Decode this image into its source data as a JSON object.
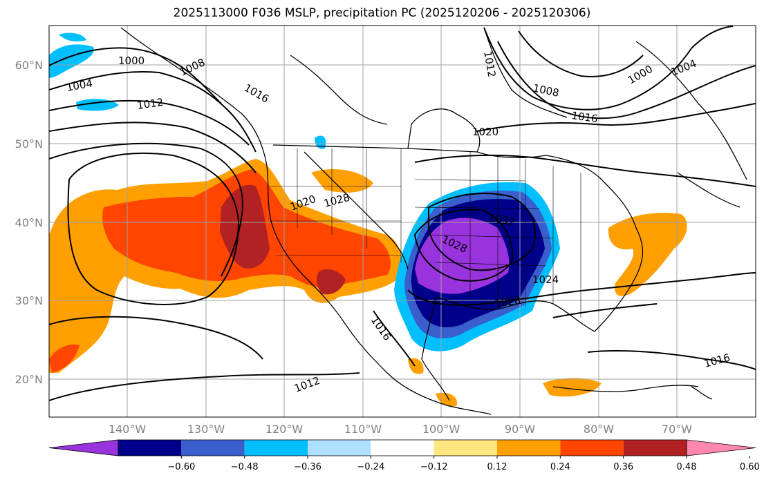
{
  "title": "2025113000 F036 MSLP, precipitation PC (2025120206 - 2025120306)",
  "map": {
    "lat_labels": [
      "60°N",
      "50°N",
      "40°N",
      "30°N",
      "20°N"
    ],
    "lon_labels": [
      "140°W",
      "130°W",
      "120°W",
      "110°W",
      "100°W",
      "90°W",
      "80°W",
      "70°W"
    ],
    "isobar_labels": [
      "1000",
      "1008",
      "1004",
      "1012",
      "1016",
      "1020",
      "1012",
      "1000",
      "1004",
      "1008",
      "1016",
      "1020",
      "1024",
      "1028",
      "1028",
      "1032",
      "1024",
      "1028",
      "1016",
      "1012",
      "1016"
    ]
  },
  "colorbar": {
    "levels": [
      "-0.60",
      "-0.48",
      "-0.36",
      "-0.24",
      "-0.12",
      "0.12",
      "0.24",
      "0.36",
      "0.48",
      "0.60"
    ],
    "colors": [
      "#9933dd",
      "#00008b",
      "#3a5fcd",
      "#00bfff",
      "#b0e0ff",
      "#ffffff",
      "#ffe680",
      "#ffa000",
      "#ff4500",
      "#b22222",
      "#ff88b0"
    ]
  }
}
